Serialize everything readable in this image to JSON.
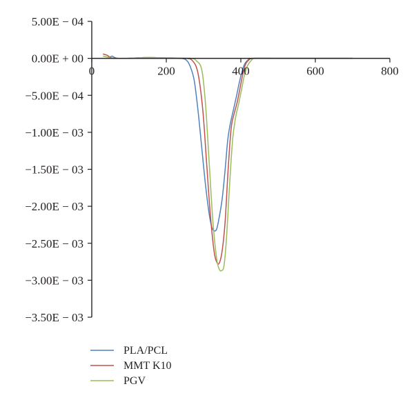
{
  "chart_data": {
    "type": "line",
    "title": "",
    "xlabel": "",
    "ylabel": "",
    "xlim": [
      0,
      800
    ],
    "ylim": [
      -0.0035,
      0.0005
    ],
    "x_ticks": [
      {
        "value": 0,
        "label": "0"
      },
      {
        "value": 200,
        "label": "200"
      },
      {
        "value": 400,
        "label": "400"
      },
      {
        "value": 600,
        "label": "600"
      },
      {
        "value": 800,
        "label": "800"
      }
    ],
    "y_ticks": [
      {
        "value": 0.0005,
        "label": "5.00E − 04"
      },
      {
        "value": 0,
        "label": "0.00E + 00"
      },
      {
        "value": -0.0005,
        "label": "−5.00E − 04"
      },
      {
        "value": -0.001,
        "label": "−1.00E − 03"
      },
      {
        "value": -0.0015,
        "label": "−1.50E − 03"
      },
      {
        "value": -0.002,
        "label": "−2.00E − 03"
      },
      {
        "value": -0.0025,
        "label": "−2.50E − 03"
      },
      {
        "value": -0.003,
        "label": "−3.00E − 03"
      },
      {
        "value": -0.0035,
        "label": "−3.50E − 03"
      }
    ],
    "grid": false,
    "legend_position": "bottom-left",
    "series": [
      {
        "name": "PLA/PCL",
        "color": "#4f81bd",
        "points": [
          [
            50,
            2e-05
          ],
          [
            55,
            3e-05
          ],
          [
            60,
            1.5e-05
          ],
          [
            70,
            0
          ],
          [
            100,
            0
          ],
          [
            150,
            1e-05
          ],
          [
            200,
            5e-06
          ],
          [
            240,
            0
          ],
          [
            255,
            -3e-05
          ],
          [
            265,
            -0.00012
          ],
          [
            275,
            -0.0003
          ],
          [
            285,
            -0.0007
          ],
          [
            295,
            -0.0012
          ],
          [
            305,
            -0.0017
          ],
          [
            315,
            -0.0021
          ],
          [
            322,
            -0.00228
          ],
          [
            328,
            -0.00233
          ],
          [
            335,
            -0.00231
          ],
          [
            342,
            -0.00215
          ],
          [
            350,
            -0.0019
          ],
          [
            358,
            -0.0015
          ],
          [
            365,
            -0.0011
          ],
          [
            372,
            -0.00088
          ],
          [
            380,
            -0.0007
          ],
          [
            388,
            -0.00052
          ],
          [
            395,
            -0.00035
          ],
          [
            402,
            -0.0002
          ],
          [
            410,
            -8e-05
          ],
          [
            420,
            -2e-05
          ],
          [
            430,
            0
          ],
          [
            500,
            0
          ],
          [
            600,
            0
          ],
          [
            700,
            0
          ]
        ]
      },
      {
        "name": "MMT K10",
        "color": "#c0504d",
        "points": [
          [
            30,
            6e-05
          ],
          [
            36,
            5e-05
          ],
          [
            42,
            4e-05
          ],
          [
            48,
            2e-05
          ],
          [
            60,
            0
          ],
          [
            100,
            0
          ],
          [
            150,
            1e-05
          ],
          [
            200,
            5e-06
          ],
          [
            250,
            0
          ],
          [
            270,
            -3e-05
          ],
          [
            285,
            -0.0002
          ],
          [
            298,
            -0.0007
          ],
          [
            308,
            -0.0014
          ],
          [
            318,
            -0.0021
          ],
          [
            328,
            -0.0026
          ],
          [
            335,
            -0.00275
          ],
          [
            342,
            -0.00277
          ],
          [
            350,
            -0.0026
          ],
          [
            358,
            -0.0022
          ],
          [
            366,
            -0.0015
          ],
          [
            374,
            -0.00095
          ],
          [
            382,
            -0.00075
          ],
          [
            390,
            -0.0006
          ],
          [
            398,
            -0.0004
          ],
          [
            405,
            -0.00022
          ],
          [
            412,
            -9e-05
          ],
          [
            420,
            -3e-05
          ],
          [
            435,
            0
          ],
          [
            500,
            0
          ],
          [
            600,
            0
          ],
          [
            700,
            0
          ]
        ]
      },
      {
        "name": "PGV",
        "color": "#9bbb59",
        "points": [
          [
            30,
            3e-05
          ],
          [
            40,
            2e-05
          ],
          [
            50,
            1e-05
          ],
          [
            60,
            0
          ],
          [
            100,
            0
          ],
          [
            150,
            1.2e-05
          ],
          [
            200,
            5e-06
          ],
          [
            265,
            0
          ],
          [
            280,
            -3e-05
          ],
          [
            295,
            -0.00015
          ],
          [
            305,
            -0.0006
          ],
          [
            315,
            -0.0014
          ],
          [
            325,
            -0.0022
          ],
          [
            335,
            -0.0027
          ],
          [
            342,
            -0.00285
          ],
          [
            348,
            -0.00287
          ],
          [
            355,
            -0.0028
          ],
          [
            362,
            -0.0024
          ],
          [
            370,
            -0.0017
          ],
          [
            378,
            -0.0011
          ],
          [
            386,
            -0.0008
          ],
          [
            394,
            -0.00062
          ],
          [
            402,
            -0.00042
          ],
          [
            410,
            -0.00022
          ],
          [
            418,
            -0.0001
          ],
          [
            428,
            -3e-05
          ],
          [
            440,
            0
          ],
          [
            500,
            0
          ],
          [
            600,
            0
          ],
          [
            700,
            0
          ]
        ]
      }
    ]
  }
}
